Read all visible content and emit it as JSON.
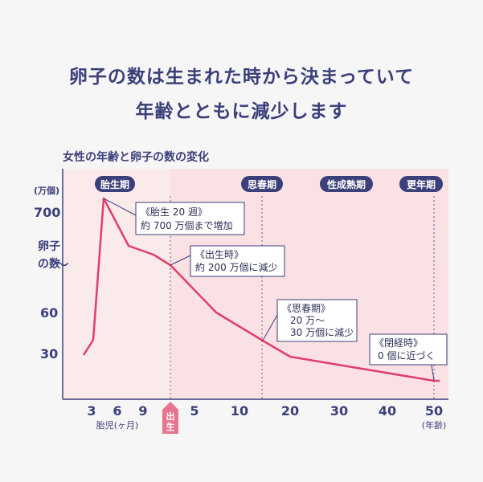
{
  "heading": {
    "line1": "卵子の数は生まれた時から決まっていて",
    "line2": "年齢とともに減少します"
  },
  "colors": {
    "navy": "#3b3f7a",
    "line": "#e23d6c",
    "badge": "#3b3f7a",
    "region_pre": "#fbeaea",
    "region_post": "#f9e1e4",
    "birth_marker": "#e8748f"
  },
  "chart_data": {
    "type": "line",
    "title": "女性の年齢と卵子の数の変化",
    "y_unit": "(万個)",
    "y_label": "卵子の数",
    "y_break_symbol": "〜",
    "y_ticks": [
      "700",
      "60",
      "30"
    ],
    "x_prenatal_label": "胎児(ヶ月)",
    "x_prenatal_ticks": [
      "3",
      "6",
      "9"
    ],
    "x_birth_label": "出生",
    "x_ticks": [
      "5",
      "10",
      "20",
      "30",
      "40",
      "50"
    ],
    "x_unit": "(年齢)",
    "stage_badges": [
      "胎生期",
      "思春期",
      "性成熟期",
      "更年期"
    ],
    "annotations": [
      {
        "lines": [
          "《胎生 20 週》",
          "約 700 万個まで増加"
        ]
      },
      {
        "lines": [
          "《出生時》",
          "約 200 万個に減少"
        ]
      },
      {
        "lines": [
          "《思春期》",
          "20 万〜",
          "30 万個に減少"
        ]
      },
      {
        "lines": [
          "《閉経時》",
          "0 個に近づく"
        ]
      }
    ]
  }
}
